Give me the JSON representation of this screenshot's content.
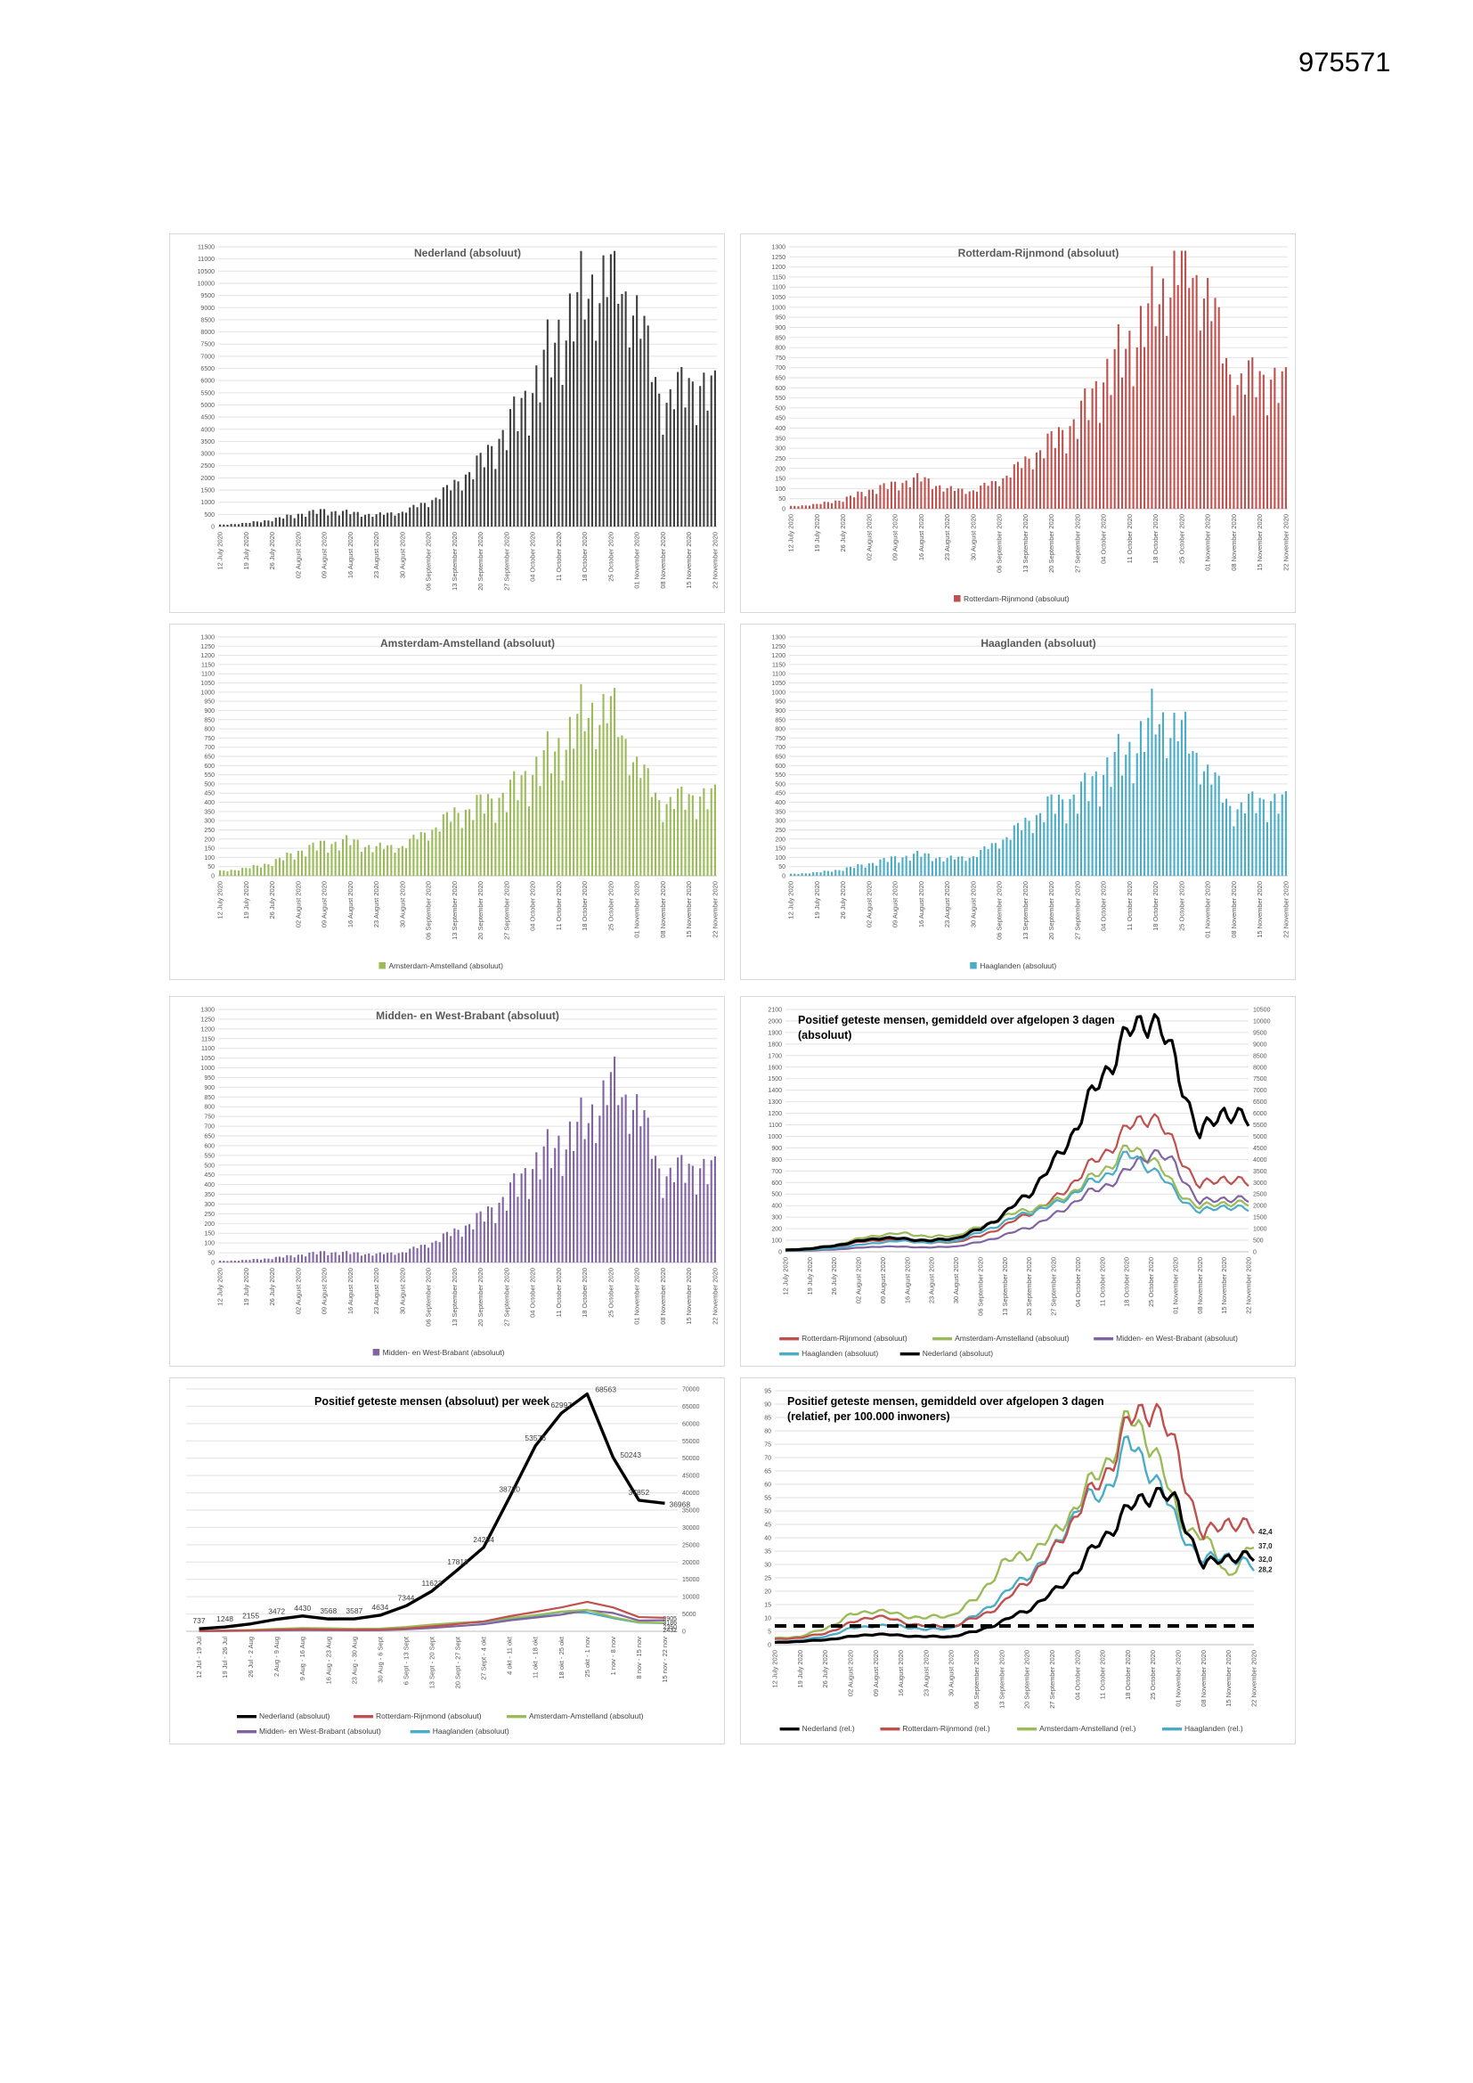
{
  "page": {
    "number": "975571"
  },
  "colors": {
    "nederland_bar": "#3f3f3f",
    "nederland_line": "#000000",
    "rotterdam": "#c0504d",
    "amsterdam": "#9bbb59",
    "haaglanden": "#4bacc6",
    "midden": "#8064a2",
    "gridline": "#e2e2e2",
    "axis_text": "#595959"
  },
  "date_ticks": [
    "12 July 2020",
    "19 July 2020",
    "26 July 2020",
    "02 August 2020",
    "09 August 2020",
    "16 August 2020",
    "23 August 2020",
    "30 August 2020",
    "06 September 2020",
    "13 September 2020",
    "20 September 2020",
    "27 September 2020",
    "04 October 2020",
    "11 October 2020",
    "18 October 2020",
    "25 October 2020",
    "01 November 2020",
    "08 November 2020",
    "15 November 2020",
    "22 November 2020"
  ],
  "week_ticks": [
    "12 Jul - 19 Jul",
    "19 Jul - 26 Jul",
    "26 Jul - 2 Aug",
    "2 Aug - 9 Aug",
    "9 Aug - 16 Aug",
    "16 Aug - 23 Aug",
    "23 Aug - 30 Aug",
    "30 Aug - 6 Sept",
    "6 Sept - 13 Sept",
    "13 Sept - 20 Sept",
    "20 Sept - 27 Sept",
    "27 Sept - 4 okt",
    "4 okt - 11 okt",
    "11 okt - 18 okt",
    "18 okt - 25 okt",
    "25 okt - 1 nov",
    "1 nov - 8 nov",
    "8 nov - 15 nov",
    "15 nov - 22 nov"
  ],
  "chart_data": [
    {
      "id": "nederland-absoluut",
      "type": "bar",
      "title": "Nederland (absoluut)",
      "color": "#3f3f3f",
      "ymax": 11500,
      "ystep": 500,
      "legend": null,
      "x_ticks": "date_ticks",
      "weekly_anchors": [
        70,
        140,
        280,
        500,
        640,
        560,
        470,
        600,
        1000,
        1700,
        2600,
        3900,
        5600,
        7700,
        9400,
        10300,
        8800,
        4900,
        5900,
        5300
      ]
    },
    {
      "id": "rotterdam-rijnmond-absoluut",
      "type": "bar",
      "title": "Rotterdam-Rijnmond (absoluut)",
      "color": "#c0504d",
      "ymax": 1300,
      "ystep": 50,
      "legend": "Rotterdam-Rijnmond (absoluut)",
      "x_ticks": "date_ticks",
      "weekly_anchors": [
        12,
        22,
        45,
        90,
        120,
        150,
        95,
        90,
        140,
        230,
        330,
        430,
        640,
        800,
        1000,
        1230,
        1060,
        600,
        660,
        580
      ]
    },
    {
      "id": "amsterdam-amstelland-absoluut",
      "type": "bar",
      "title": "Amsterdam-Amstelland (absoluut)",
      "color": "#9bbb59",
      "ymax": 1300,
      "ystep": 50,
      "legend": "Amsterdam-Amstelland (absoluut)",
      "x_ticks": "date_ticks",
      "weekly_anchors": [
        25,
        40,
        70,
        130,
        170,
        185,
        150,
        160,
        240,
        330,
        380,
        430,
        560,
        680,
        870,
        900,
        600,
        380,
        430,
        410
      ]
    },
    {
      "id": "haaglanden-absoluut",
      "type": "bar",
      "title": "Haaglanden (absoluut)",
      "color": "#4bacc6",
      "ymax": 1300,
      "ystep": 50,
      "legend": "Haaglanden (absoluut)",
      "x_ticks": "date_ticks",
      "weekly_anchors": [
        10,
        18,
        35,
        65,
        95,
        115,
        90,
        105,
        185,
        280,
        380,
        420,
        560,
        660,
        850,
        780,
        560,
        350,
        410,
        380
      ]
    },
    {
      "id": "midden-west-brabant-absoluut",
      "type": "bar",
      "title": "Midden- en West-Brabant (absoluut)",
      "color": "#8064a2",
      "ymax": 1300,
      "ystep": 50,
      "legend": "Midden- en West-Brabant (absoluut)",
      "x_ticks": "date_ticks",
      "weekly_anchors": [
        8,
        12,
        22,
        38,
        52,
        48,
        42,
        52,
        95,
        155,
        225,
        330,
        490,
        590,
        700,
        900,
        800,
        430,
        490,
        450
      ]
    },
    {
      "id": "gemiddeld-3-dagen-absoluut",
      "type": "line_daily",
      "title_lines": [
        "Positief geteste mensen, gemiddeld over afgelopen 3 dagen",
        "(absoluut)"
      ],
      "ymax": 2100,
      "ystep": 100,
      "right_ymax": 10500,
      "right_ystep": 500,
      "x_ticks": "date_ticks",
      "series": [
        {
          "name": "Rotterdam-Rijnmond (absoluut)",
          "color": "#c0504d",
          "axis": "left",
          "width": 2.2,
          "weekly_anchors": [
            14,
            24,
            44,
            82,
            105,
            92,
            76,
            86,
            135,
            225,
            335,
            445,
            645,
            840,
            1050,
            1210,
            900,
            560,
            650,
            580
          ]
        },
        {
          "name": "Amsterdam-Amstelland (absoluut)",
          "color": "#9bbb59",
          "axis": "left",
          "width": 2.2,
          "weekly_anchors": [
            20,
            32,
            56,
            112,
            150,
            158,
            128,
            142,
            215,
            305,
            370,
            420,
            555,
            700,
            885,
            835,
            545,
            380,
            430,
            405
          ]
        },
        {
          "name": "Midden- en West-Brabant (absoluut)",
          "color": "#8064a2",
          "axis": "left",
          "width": 2.2,
          "weekly_anchors": [
            7,
            11,
            19,
            34,
            47,
            42,
            37,
            47,
            84,
            144,
            214,
            308,
            458,
            558,
            688,
            880,
            750,
            420,
            470,
            440
          ]
        },
        {
          "name": "Haaglanden (absoluut)",
          "color": "#4bacc6",
          "axis": "left",
          "width": 2.2,
          "weekly_anchors": [
            9,
            16,
            30,
            58,
            84,
            94,
            78,
            93,
            168,
            258,
            348,
            398,
            538,
            640,
            835,
            740,
            510,
            340,
            400,
            360
          ]
        },
        {
          "name": "Nederland (absoluut)",
          "color": "#000000",
          "axis": "right",
          "width": 3.2,
          "weekly_anchors": [
            70,
            130,
            260,
            460,
            610,
            545,
            480,
            590,
            980,
            1650,
            2550,
            3800,
            5550,
            7650,
            9300,
            10350,
            8200,
            5000,
            6200,
            5550
          ]
        }
      ],
      "legend_rows": [
        [
          {
            "label": "Rotterdam-Rijnmond (absoluut)",
            "color": "#c0504d"
          },
          {
            "label": "Amsterdam-Amstelland (absoluut)",
            "color": "#9bbb59"
          },
          {
            "label": "Midden- en West-Brabant (absoluut)",
            "color": "#8064a2"
          }
        ],
        [
          {
            "label": "Haaglanden (absoluut)",
            "color": "#4bacc6"
          },
          {
            "label": "Nederland (absoluut)",
            "color": "#000000"
          }
        ]
      ]
    },
    {
      "id": "per-week-absoluut",
      "type": "line_weekly",
      "title": "Positief geteste mensen (absoluut) per week",
      "right_ymax": 70000,
      "right_ystep": 5000,
      "x_ticks": "week_ticks",
      "series": [
        {
          "name": "Nederland (absoluut)",
          "color": "#000000",
          "width": 3.4,
          "values": [
            737,
            1248,
            2155,
            3472,
            4430,
            3568,
            3587,
            4634,
            7344,
            11622,
            17818,
            24254,
            38720,
            53576,
            62997,
            68563,
            50243,
            37852,
            36968
          ],
          "point_labels": [
            "737",
            "1248",
            "2155",
            "3472",
            "4430",
            "3568",
            "3587",
            "4634",
            "7344",
            "11622",
            "17818",
            "24254",
            "38720",
            "53576",
            "62997",
            "68563",
            "50243",
            "37852",
            "36968"
          ]
        },
        {
          "name": "Rotterdam-Rijnmond (absoluut)",
          "color": "#c0504d",
          "width": 2.2,
          "values": [
            105,
            160,
            270,
            470,
            610,
            520,
            450,
            510,
            820,
            1400,
            2100,
            2850,
            4350,
            5600,
            6900,
            8500,
            6900,
            4100,
            3905
          ]
        },
        {
          "name": "Amsterdam-Amstelland (absoluut)",
          "color": "#9bbb59",
          "width": 2.2,
          "values": [
            160,
            220,
            380,
            720,
            950,
            880,
            720,
            780,
            1250,
            1950,
            2450,
            2850,
            3850,
            4650,
            5700,
            6200,
            4100,
            2600,
            2432
          ]
        },
        {
          "name": "Midden- en West-Brabant (absoluut)",
          "color": "#8064a2",
          "width": 2.2,
          "values": [
            60,
            90,
            150,
            260,
            340,
            310,
            290,
            330,
            560,
            960,
            1500,
            2050,
            3150,
            3950,
            4800,
            6100,
            5300,
            3100,
            3186
          ]
        },
        {
          "name": "Haaglanden (absoluut)",
          "color": "#4bacc6",
          "width": 2.2,
          "values": [
            85,
            130,
            210,
            420,
            560,
            610,
            510,
            560,
            1050,
            1750,
            2350,
            2650,
            3650,
            4350,
            5600,
            5400,
            3800,
            2500,
            2350
          ]
        }
      ],
      "end_labels": [
        {
          "text": "3905",
          "value": 3905
        },
        {
          "text": "3186",
          "value": 3186
        },
        {
          "text": "2350",
          "value": 2500
        },
        {
          "text": "2432",
          "value": 2100
        }
      ],
      "legend_rows": [
        [
          {
            "label": "Nederland (absoluut)",
            "color": "#000000"
          },
          {
            "label": "Rotterdam-Rijnmond (absoluut)",
            "color": "#c0504d"
          },
          {
            "label": "Amsterdam-Amstelland (absoluut)",
            "color": "#9bbb59"
          }
        ],
        [
          {
            "label": "Midden- en West-Brabant (absoluut)",
            "color": "#8064a2"
          },
          {
            "label": "Haaglanden (absoluut)",
            "color": "#4bacc6"
          }
        ]
      ]
    },
    {
      "id": "gemiddeld-3-dagen-relatief",
      "type": "line_daily",
      "title_lines": [
        "Positief geteste mensen, gemiddeld over afgelopen 3 dagen",
        "(relatief, per 100.000 inwoners)"
      ],
      "ymax": 95,
      "ystep": 5,
      "threshold": 7,
      "x_ticks": "date_ticks",
      "series": [
        {
          "name": "Amsterdam-Amstelland (rel.)",
          "color": "#9bbb59",
          "axis": "left",
          "width": 2.4,
          "weekly_anchors": [
            2.4,
            3,
            6,
            11,
            13,
            11,
            10,
            11,
            17,
            30,
            34,
            40,
            53,
            66,
            84,
            76,
            47,
            40,
            26,
            37
          ]
        },
        {
          "name": "Haaglanden (rel.)",
          "color": "#4bacc6",
          "axis": "left",
          "width": 2.4,
          "weekly_anchors": [
            1,
            1.6,
            3,
            6,
            7.2,
            7,
            5.6,
            6.2,
            11,
            18,
            26,
            34,
            52,
            56,
            75,
            65,
            44,
            31,
            34,
            28.2
          ]
        },
        {
          "name": "Rotterdam-Rijnmond (rel.)",
          "color": "#c0504d",
          "axis": "left",
          "width": 2.4,
          "weekly_anchors": [
            2,
            2.6,
            4.2,
            8,
            11,
            8.5,
            7,
            6.8,
            10,
            15,
            24,
            34,
            50,
            62,
            82,
            91,
            70,
            40,
            47,
            42.4
          ]
        },
        {
          "name": "Nederland (rel.)",
          "color": "#000000",
          "axis": "left",
          "width": 3.2,
          "weekly_anchors": [
            0.8,
            1.2,
            1.8,
            3,
            4,
            3.4,
            3,
            3,
            5,
            8.5,
            13,
            19,
            28,
            40,
            50,
            58,
            52,
            29,
            33.5,
            32
          ]
        }
      ],
      "end_labels": [
        {
          "text": "42,4",
          "value": 42.4
        },
        {
          "text": "37,0",
          "value": 37.0
        },
        {
          "text": "32,0",
          "value": 32.0
        },
        {
          "text": "28,2",
          "value": 28.2
        }
      ],
      "legend_rows": [
        [
          {
            "label": "Nederland (rel.)",
            "color": "#000000"
          },
          {
            "label": "Rotterdam-Rijnmond (rel.)",
            "color": "#c0504d"
          },
          {
            "label": "Amsterdam-Amstelland (rel.)",
            "color": "#9bbb59"
          },
          {
            "label": "Haaglanden (rel.)",
            "color": "#4bacc6"
          }
        ]
      ]
    }
  ]
}
